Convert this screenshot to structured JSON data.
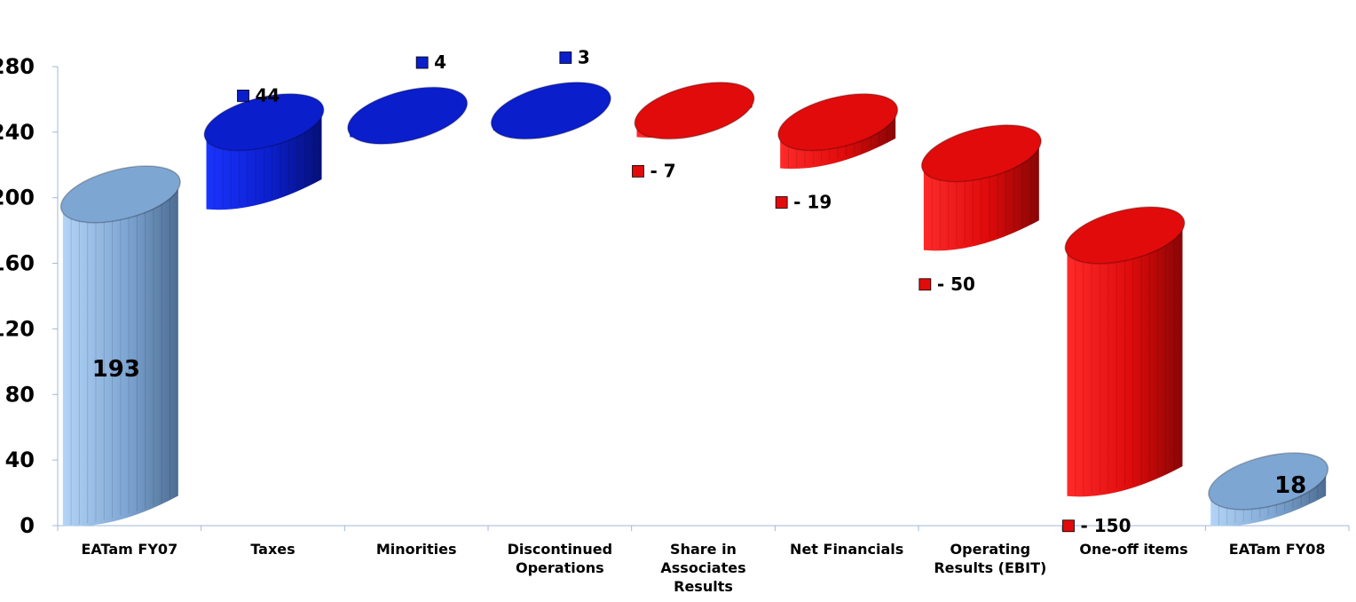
{
  "chart_data": {
    "type": "bar",
    "subtype": "waterfall-3d-cylinder",
    "title": "",
    "xlabel": "",
    "ylabel": "",
    "ylim": [
      0,
      280
    ],
    "yticks": [
      "0",
      "40",
      "80",
      "120",
      "160",
      "200",
      "240",
      "280"
    ],
    "grid": false,
    "legend": "none",
    "categories": [
      [
        "EATam FY07"
      ],
      [
        "Taxes"
      ],
      [
        "Minorities"
      ],
      [
        "Discontinued",
        "Operations"
      ],
      [
        "Share in",
        "Associates",
        "Results"
      ],
      [
        "Net Financials"
      ],
      [
        "Operating",
        "Results (EBIT)"
      ],
      [
        "One-off items"
      ],
      [
        "EATam FY08"
      ]
    ],
    "values": [
      193,
      44,
      4,
      3,
      -7,
      -19,
      -50,
      -150,
      18
    ],
    "bar_kinds": [
      "total",
      "increase",
      "increase",
      "increase",
      "decrease",
      "decrease",
      "decrease",
      "decrease",
      "total"
    ],
    "data_labels": [
      "193",
      "44",
      "4",
      "3",
      "- 7",
      "- 19",
      "- 50",
      "- 150",
      "18"
    ],
    "colors": {
      "total": "#7ea6d3",
      "increase": "#0b1ecc",
      "decrease": "#e10b0b"
    }
  }
}
